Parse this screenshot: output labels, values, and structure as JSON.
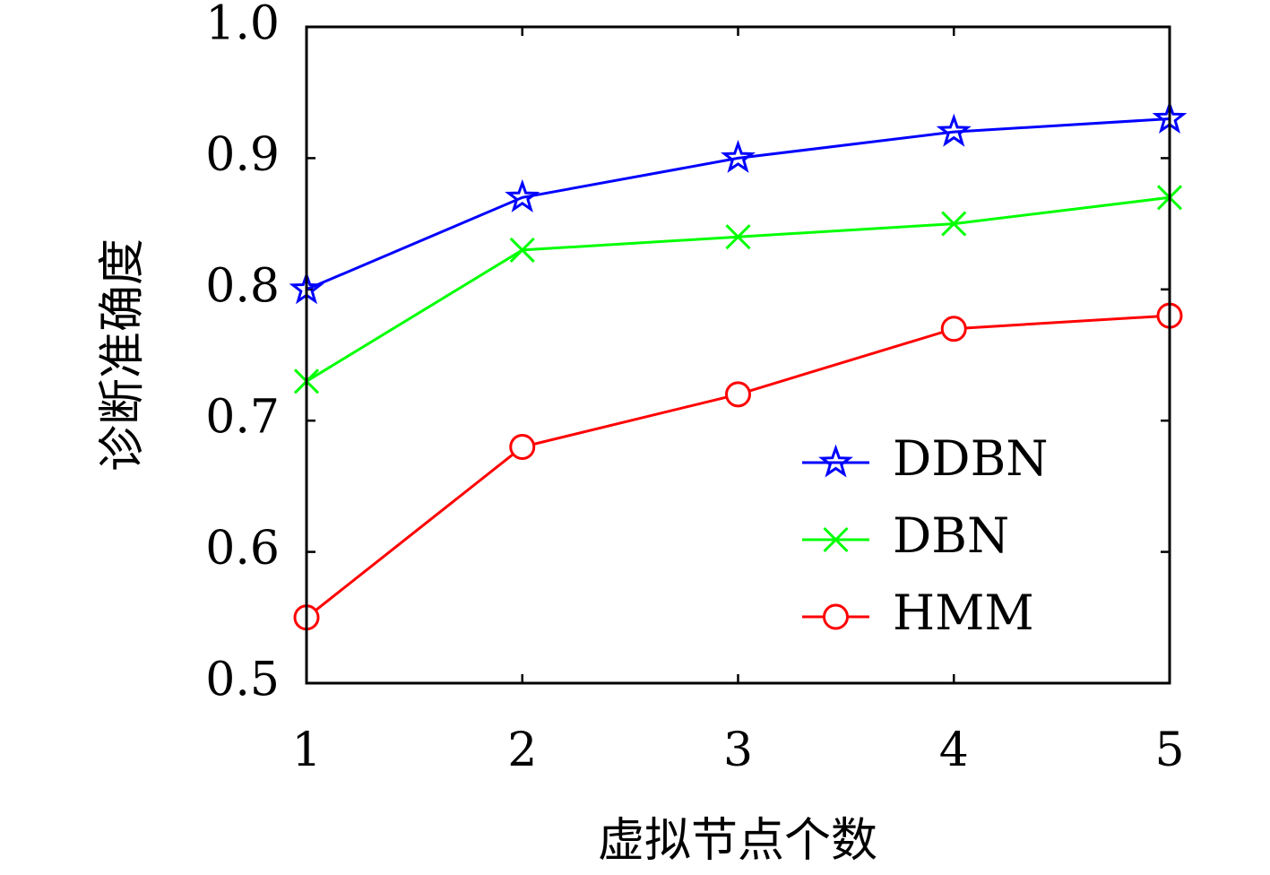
{
  "chart_data": {
    "type": "line",
    "xlabel": "虚拟节点个数",
    "ylabel": "诊断准确度",
    "x": [
      1,
      2,
      3,
      4,
      5
    ],
    "xticks": [
      "1",
      "2",
      "3",
      "4",
      "5"
    ],
    "xlim": [
      1,
      5
    ],
    "ylim": [
      0.5,
      1.0
    ],
    "yticks": [
      "0.5",
      "0.6",
      "0.7",
      "0.8",
      "0.9",
      "1.0"
    ],
    "grid": false,
    "legend_position": "lower-right",
    "series": [
      {
        "name": "DDBN",
        "values": [
          0.8,
          0.87,
          0.9,
          0.92,
          0.93
        ],
        "color": "#0000ff",
        "marker": "star"
      },
      {
        "name": "DBN",
        "values": [
          0.73,
          0.83,
          0.84,
          0.85,
          0.87
        ],
        "color": "#00ff00",
        "marker": "x"
      },
      {
        "name": "HMM",
        "values": [
          0.55,
          0.68,
          0.72,
          0.77,
          0.78
        ],
        "color": "#ff0000",
        "marker": "circle"
      }
    ]
  }
}
